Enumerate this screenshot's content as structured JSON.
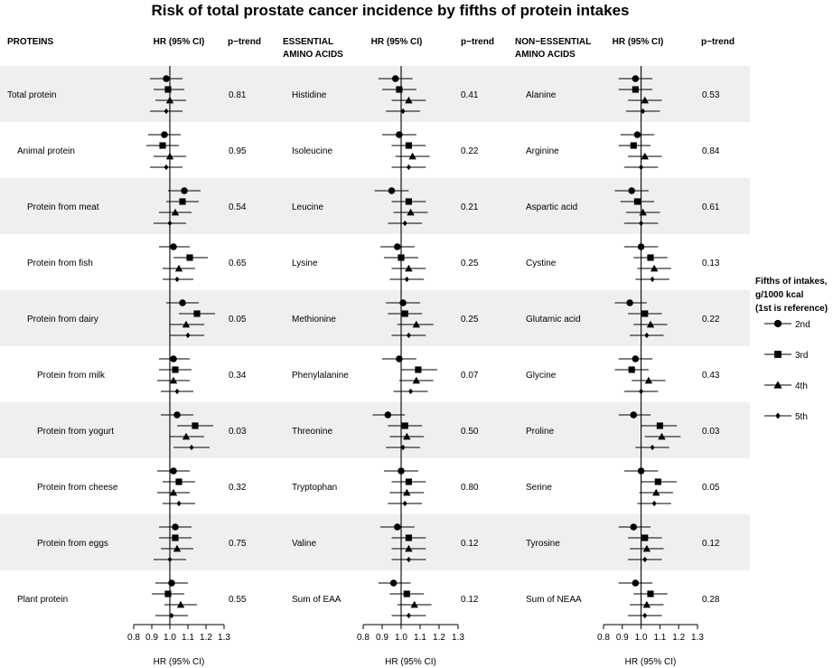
{
  "chart_data": {
    "type": "forest",
    "title": "Risk of total prostate cancer incidence by fifths of protein intakes",
    "xlabel": "HR (95% CI)",
    "xlim": [
      0.8,
      1.3
    ],
    "xticks": [
      "0.8",
      "0.9",
      "1.0",
      "1.1",
      "1.2",
      "1.3"
    ],
    "reference_line": 1.0,
    "row_shading": "alternating light grey",
    "legend": {
      "title_lines": [
        "Fifths of intakes,",
        "g/1000 kcal",
        "(1st is reference)"
      ],
      "placement": "right",
      "entries": [
        {
          "label": "2nd",
          "marker": "circle"
        },
        {
          "label": "3rd",
          "marker": "square"
        },
        {
          "label": "4th",
          "marker": "triangle"
        },
        {
          "label": "5th",
          "marker": "diamond"
        }
      ]
    },
    "panels": [
      {
        "header": [
          "PROTEINS"
        ],
        "hr_header": "HR (95% CI)",
        "ptrend_header": "p−trend",
        "rows": [
          {
            "label": "Total protein",
            "indent": 0,
            "p_trend": "0.81",
            "estimates": [
              [
                0.98,
                0.89,
                1.07
              ],
              [
                0.99,
                0.91,
                1.08
              ],
              [
                1.0,
                0.92,
                1.09
              ],
              [
                0.98,
                0.89,
                1.07
              ]
            ]
          },
          {
            "label": "Animal protein",
            "indent": 1,
            "p_trend": "0.95",
            "estimates": [
              [
                0.97,
                0.88,
                1.06
              ],
              [
                0.96,
                0.87,
                1.05
              ],
              [
                1.0,
                0.91,
                1.09
              ],
              [
                0.98,
                0.89,
                1.07
              ]
            ]
          },
          {
            "label": "Protein from meat",
            "indent": 2,
            "p_trend": "0.54",
            "estimates": [
              [
                1.08,
                0.99,
                1.17
              ],
              [
                1.07,
                0.98,
                1.16
              ],
              [
                1.03,
                0.94,
                1.12
              ],
              [
                1.0,
                0.91,
                1.09
              ]
            ]
          },
          {
            "label": "Protein from fish",
            "indent": 2,
            "p_trend": "0.65",
            "estimates": [
              [
                1.02,
                0.94,
                1.11
              ],
              [
                1.11,
                1.02,
                1.21
              ],
              [
                1.05,
                0.96,
                1.14
              ],
              [
                1.04,
                0.96,
                1.13
              ]
            ]
          },
          {
            "label": "Protein from dairy",
            "indent": 2,
            "p_trend": "0.05",
            "estimates": [
              [
                1.07,
                0.98,
                1.16
              ],
              [
                1.15,
                1.05,
                1.25
              ],
              [
                1.09,
                1.0,
                1.19
              ],
              [
                1.1,
                1.0,
                1.19
              ]
            ]
          },
          {
            "label": "Protein from milk",
            "indent": 3,
            "p_trend": "0.34",
            "estimates": [
              [
                1.02,
                0.94,
                1.11
              ],
              [
                1.03,
                0.94,
                1.12
              ],
              [
                1.02,
                0.93,
                1.11
              ],
              [
                1.04,
                0.95,
                1.13
              ]
            ]
          },
          {
            "label": "Protein from yogurt",
            "indent": 3,
            "p_trend": "0.03",
            "estimates": [
              [
                1.04,
                0.95,
                1.13
              ],
              [
                1.14,
                1.04,
                1.24
              ],
              [
                1.09,
                1.0,
                1.19
              ],
              [
                1.12,
                1.02,
                1.22
              ]
            ]
          },
          {
            "label": "Protein from cheese",
            "indent": 3,
            "p_trend": "0.32",
            "estimates": [
              [
                1.02,
                0.93,
                1.11
              ],
              [
                1.05,
                0.96,
                1.14
              ],
              [
                1.02,
                0.93,
                1.11
              ],
              [
                1.05,
                0.96,
                1.14
              ]
            ]
          },
          {
            "label": "Protein from eggs",
            "indent": 3,
            "p_trend": "0.75",
            "estimates": [
              [
                1.03,
                0.94,
                1.12
              ],
              [
                1.03,
                0.94,
                1.12
              ],
              [
                1.04,
                0.95,
                1.13
              ],
              [
                1.0,
                0.91,
                1.09
              ]
            ]
          },
          {
            "label": "Plant protein",
            "indent": 1,
            "p_trend": "0.55",
            "estimates": [
              [
                1.01,
                0.92,
                1.1
              ],
              [
                0.99,
                0.9,
                1.08
              ],
              [
                1.06,
                0.97,
                1.15
              ],
              [
                1.01,
                0.92,
                1.1
              ]
            ]
          }
        ]
      },
      {
        "header": [
          "ESSENTIAL",
          "AMINO ACIDS"
        ],
        "hr_header": "HR (95% CI)",
        "ptrend_header": "p−trend",
        "rows": [
          {
            "label": "Histidine",
            "indent": 0,
            "p_trend": "0.41",
            "estimates": [
              [
                0.97,
                0.88,
                1.06
              ],
              [
                0.99,
                0.9,
                1.08
              ],
              [
                1.04,
                0.95,
                1.13
              ],
              [
                1.01,
                0.92,
                1.1
              ]
            ]
          },
          {
            "label": "Isoleucine",
            "indent": 0,
            "p_trend": "0.22",
            "estimates": [
              [
                0.99,
                0.9,
                1.08
              ],
              [
                1.04,
                0.95,
                1.13
              ],
              [
                1.06,
                0.97,
                1.15
              ],
              [
                1.04,
                0.95,
                1.13
              ]
            ]
          },
          {
            "label": "Leucine",
            "indent": 0,
            "p_trend": "0.21",
            "estimates": [
              [
                0.95,
                0.86,
                1.04
              ],
              [
                1.04,
                0.95,
                1.13
              ],
              [
                1.05,
                0.96,
                1.14
              ],
              [
                1.02,
                0.93,
                1.11
              ]
            ]
          },
          {
            "label": "Lysine",
            "indent": 0,
            "p_trend": "0.25",
            "estimates": [
              [
                0.98,
                0.89,
                1.07
              ],
              [
                1.0,
                0.91,
                1.09
              ],
              [
                1.04,
                0.95,
                1.13
              ],
              [
                1.03,
                0.94,
                1.12
              ]
            ]
          },
          {
            "label": "Methionine",
            "indent": 0,
            "p_trend": "0.25",
            "estimates": [
              [
                1.01,
                0.92,
                1.1
              ],
              [
                1.02,
                0.93,
                1.11
              ],
              [
                1.08,
                0.98,
                1.17
              ],
              [
                1.04,
                0.95,
                1.13
              ]
            ]
          },
          {
            "label": "Phenylalanine",
            "indent": 0,
            "p_trend": "0.07",
            "estimates": [
              [
                0.99,
                0.9,
                1.08
              ],
              [
                1.09,
                1.0,
                1.19
              ],
              [
                1.08,
                0.99,
                1.17
              ],
              [
                1.05,
                0.96,
                1.14
              ]
            ]
          },
          {
            "label": "Threonine",
            "indent": 0,
            "p_trend": "0.50",
            "estimates": [
              [
                0.93,
                0.85,
                1.02
              ],
              [
                1.02,
                0.93,
                1.11
              ],
              [
                1.03,
                0.94,
                1.12
              ],
              [
                1.01,
                0.92,
                1.1
              ]
            ]
          },
          {
            "label": "Tryptophan",
            "indent": 0,
            "p_trend": "0.80",
            "estimates": [
              [
                1.0,
                0.91,
                1.09
              ],
              [
                1.04,
                0.95,
                1.13
              ],
              [
                1.03,
                0.94,
                1.12
              ],
              [
                1.02,
                0.93,
                1.11
              ]
            ]
          },
          {
            "label": "Valine",
            "indent": 0,
            "p_trend": "0.12",
            "estimates": [
              [
                0.98,
                0.89,
                1.07
              ],
              [
                1.04,
                0.95,
                1.13
              ],
              [
                1.04,
                0.95,
                1.13
              ],
              [
                1.04,
                0.95,
                1.13
              ]
            ]
          },
          {
            "label": "Sum of EAA",
            "indent": 0,
            "p_trend": "0.12",
            "estimates": [
              [
                0.96,
                0.88,
                1.05
              ],
              [
                1.03,
                0.94,
                1.12
              ],
              [
                1.07,
                0.98,
                1.16
              ],
              [
                1.04,
                0.95,
                1.13
              ]
            ]
          }
        ]
      },
      {
        "header": [
          "NON−ESSENTIAL",
          "AMINO ACIDS"
        ],
        "hr_header": "HR (95% CI)",
        "ptrend_header": "p−trend",
        "rows": [
          {
            "label": "Alanine",
            "indent": 0,
            "p_trend": "0.53",
            "estimates": [
              [
                0.97,
                0.88,
                1.06
              ],
              [
                0.97,
                0.88,
                1.06
              ],
              [
                1.02,
                0.93,
                1.11
              ],
              [
                1.01,
                0.92,
                1.1
              ]
            ]
          },
          {
            "label": "Arginine",
            "indent": 0,
            "p_trend": "0.84",
            "estimates": [
              [
                0.98,
                0.89,
                1.07
              ],
              [
                0.96,
                0.88,
                1.05
              ],
              [
                1.02,
                0.93,
                1.11
              ],
              [
                1.0,
                0.91,
                1.09
              ]
            ]
          },
          {
            "label": "Aspartic acid",
            "indent": 0,
            "p_trend": "0.61",
            "estimates": [
              [
                0.95,
                0.86,
                1.04
              ],
              [
                0.98,
                0.89,
                1.07
              ],
              [
                1.01,
                0.92,
                1.1
              ],
              [
                1.0,
                0.91,
                1.09
              ]
            ]
          },
          {
            "label": "Cystine",
            "indent": 0,
            "p_trend": "0.13",
            "estimates": [
              [
                1.0,
                0.91,
                1.09
              ],
              [
                1.05,
                0.96,
                1.14
              ],
              [
                1.07,
                0.98,
                1.16
              ],
              [
                1.06,
                0.97,
                1.15
              ]
            ]
          },
          {
            "label": "Glutamic acid",
            "indent": 0,
            "p_trend": "0.22",
            "estimates": [
              [
                0.94,
                0.86,
                1.03
              ],
              [
                1.02,
                0.93,
                1.11
              ],
              [
                1.05,
                0.96,
                1.14
              ],
              [
                1.03,
                0.94,
                1.12
              ]
            ]
          },
          {
            "label": "Glycine",
            "indent": 0,
            "p_trend": "0.43",
            "estimates": [
              [
                0.97,
                0.88,
                1.06
              ],
              [
                0.95,
                0.86,
                1.04
              ],
              [
                1.04,
                0.95,
                1.13
              ],
              [
                1.0,
                0.91,
                1.09
              ]
            ]
          },
          {
            "label": "Proline",
            "indent": 0,
            "p_trend": "0.03",
            "estimates": [
              [
                0.96,
                0.88,
                1.05
              ],
              [
                1.1,
                1.0,
                1.19
              ],
              [
                1.11,
                1.02,
                1.21
              ],
              [
                1.06,
                0.97,
                1.15
              ]
            ]
          },
          {
            "label": "Serine",
            "indent": 0,
            "p_trend": "0.05",
            "estimates": [
              [
                1.0,
                0.91,
                1.09
              ],
              [
                1.09,
                1.0,
                1.19
              ],
              [
                1.08,
                0.99,
                1.17
              ],
              [
                1.07,
                0.98,
                1.16
              ]
            ]
          },
          {
            "label": "Tyrosine",
            "indent": 0,
            "p_trend": "0.12",
            "estimates": [
              [
                0.96,
                0.88,
                1.05
              ],
              [
                1.02,
                0.93,
                1.11
              ],
              [
                1.03,
                0.94,
                1.12
              ],
              [
                1.02,
                0.93,
                1.11
              ]
            ]
          },
          {
            "label": "Sum of NEAA",
            "indent": 0,
            "p_trend": "0.28",
            "estimates": [
              [
                0.97,
                0.88,
                1.06
              ],
              [
                1.05,
                0.96,
                1.14
              ],
              [
                1.03,
                0.94,
                1.12
              ],
              [
                1.02,
                0.93,
                1.11
              ]
            ]
          }
        ]
      }
    ]
  }
}
